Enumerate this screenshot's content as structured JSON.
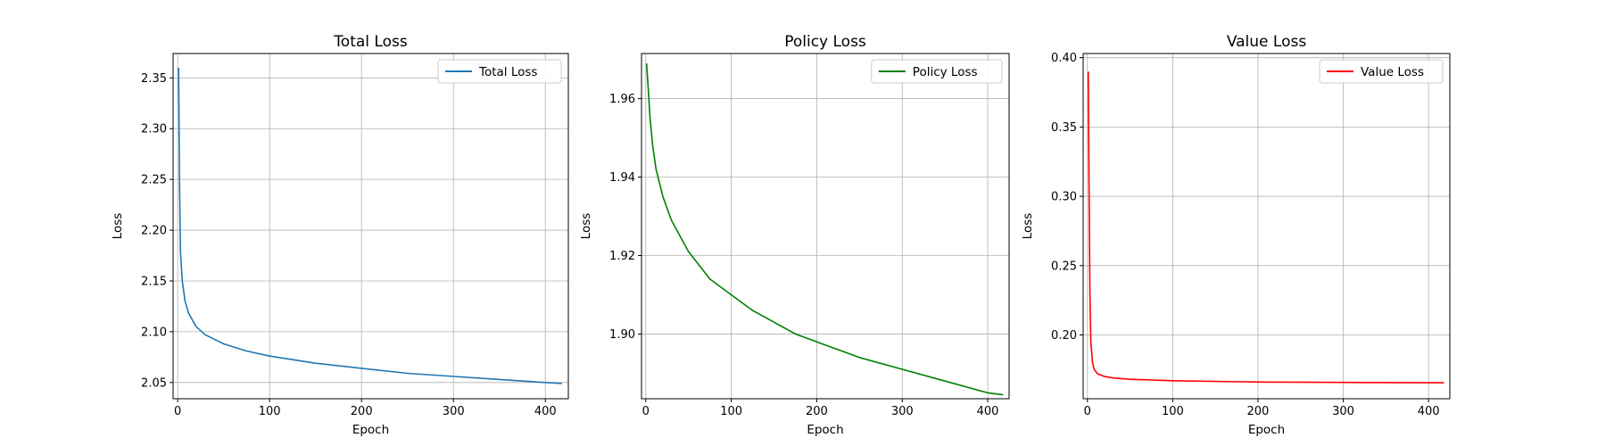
{
  "chart_data": [
    {
      "type": "line",
      "title": "Total Loss",
      "xlabel": "Epoch",
      "ylabel": "Loss",
      "xlim": [
        -5,
        425
      ],
      "ylim": [
        2.034,
        2.374
      ],
      "xticks": [
        0,
        100,
        200,
        300,
        400
      ],
      "yticks": [
        2.05,
        2.1,
        2.15,
        2.2,
        2.25,
        2.3,
        2.35
      ],
      "tick_labels_x": [
        "0",
        "100",
        "200",
        "300",
        "400"
      ],
      "tick_labels_y": [
        "2.05",
        "2.10",
        "2.15",
        "2.20",
        "2.25",
        "2.30",
        "2.35"
      ],
      "grid": true,
      "legend": "top-right",
      "series": [
        {
          "name": "Total Loss",
          "color": "#1f77b4",
          "x": [
            1,
            2,
            3,
            5,
            8,
            12,
            20,
            30,
            50,
            75,
            100,
            150,
            200,
            250,
            300,
            350,
            400,
            418
          ],
          "y": [
            2.36,
            2.25,
            2.18,
            2.15,
            2.13,
            2.118,
            2.105,
            2.097,
            2.088,
            2.081,
            2.076,
            2.069,
            2.064,
            2.059,
            2.056,
            2.053,
            2.05,
            2.049
          ]
        }
      ]
    },
    {
      "type": "line",
      "title": "Policy Loss",
      "xlabel": "Epoch",
      "ylabel": "Loss",
      "xlim": [
        -5,
        425
      ],
      "ylim": [
        1.8835,
        1.9715
      ],
      "xticks": [
        0,
        100,
        200,
        300,
        400
      ],
      "yticks": [
        1.9,
        1.92,
        1.94,
        1.96
      ],
      "tick_labels_x": [
        "0",
        "100",
        "200",
        "300",
        "400"
      ],
      "tick_labels_y": [
        "1.90",
        "1.92",
        "1.94",
        "1.96"
      ],
      "grid": true,
      "legend": "top-right",
      "series": [
        {
          "name": "Policy Loss",
          "color": "#008000",
          "x": [
            1,
            3,
            5,
            8,
            12,
            20,
            30,
            50,
            75,
            100,
            125,
            150,
            175,
            200,
            250,
            300,
            350,
            400,
            418
          ],
          "y": [
            1.969,
            1.962,
            1.955,
            1.948,
            1.942,
            1.935,
            1.929,
            1.921,
            1.914,
            1.91,
            1.906,
            1.903,
            1.9,
            1.898,
            1.894,
            1.891,
            1.888,
            1.885,
            1.8845
          ]
        }
      ]
    },
    {
      "type": "line",
      "title": "Value Loss",
      "xlabel": "Epoch",
      "ylabel": "Loss",
      "xlim": [
        -5,
        425
      ],
      "ylim": [
        0.154,
        0.403
      ],
      "xticks": [
        0,
        100,
        200,
        300,
        400
      ],
      "yticks": [
        0.2,
        0.25,
        0.3,
        0.35,
        0.4
      ],
      "tick_labels_x": [
        "0",
        "100",
        "200",
        "300",
        "400"
      ],
      "tick_labels_y": [
        "0.20",
        "0.25",
        "0.30",
        "0.35",
        "0.40"
      ],
      "grid": true,
      "legend": "top-right",
      "series": [
        {
          "name": "Value Loss",
          "color": "#ff0000",
          "x": [
            1,
            2,
            3,
            4,
            6,
            8,
            12,
            20,
            30,
            50,
            100,
            200,
            300,
            400,
            418
          ],
          "y": [
            0.39,
            0.3,
            0.23,
            0.195,
            0.18,
            0.175,
            0.172,
            0.17,
            0.169,
            0.168,
            0.167,
            0.166,
            0.1658,
            0.1655,
            0.1655
          ]
        }
      ]
    }
  ]
}
